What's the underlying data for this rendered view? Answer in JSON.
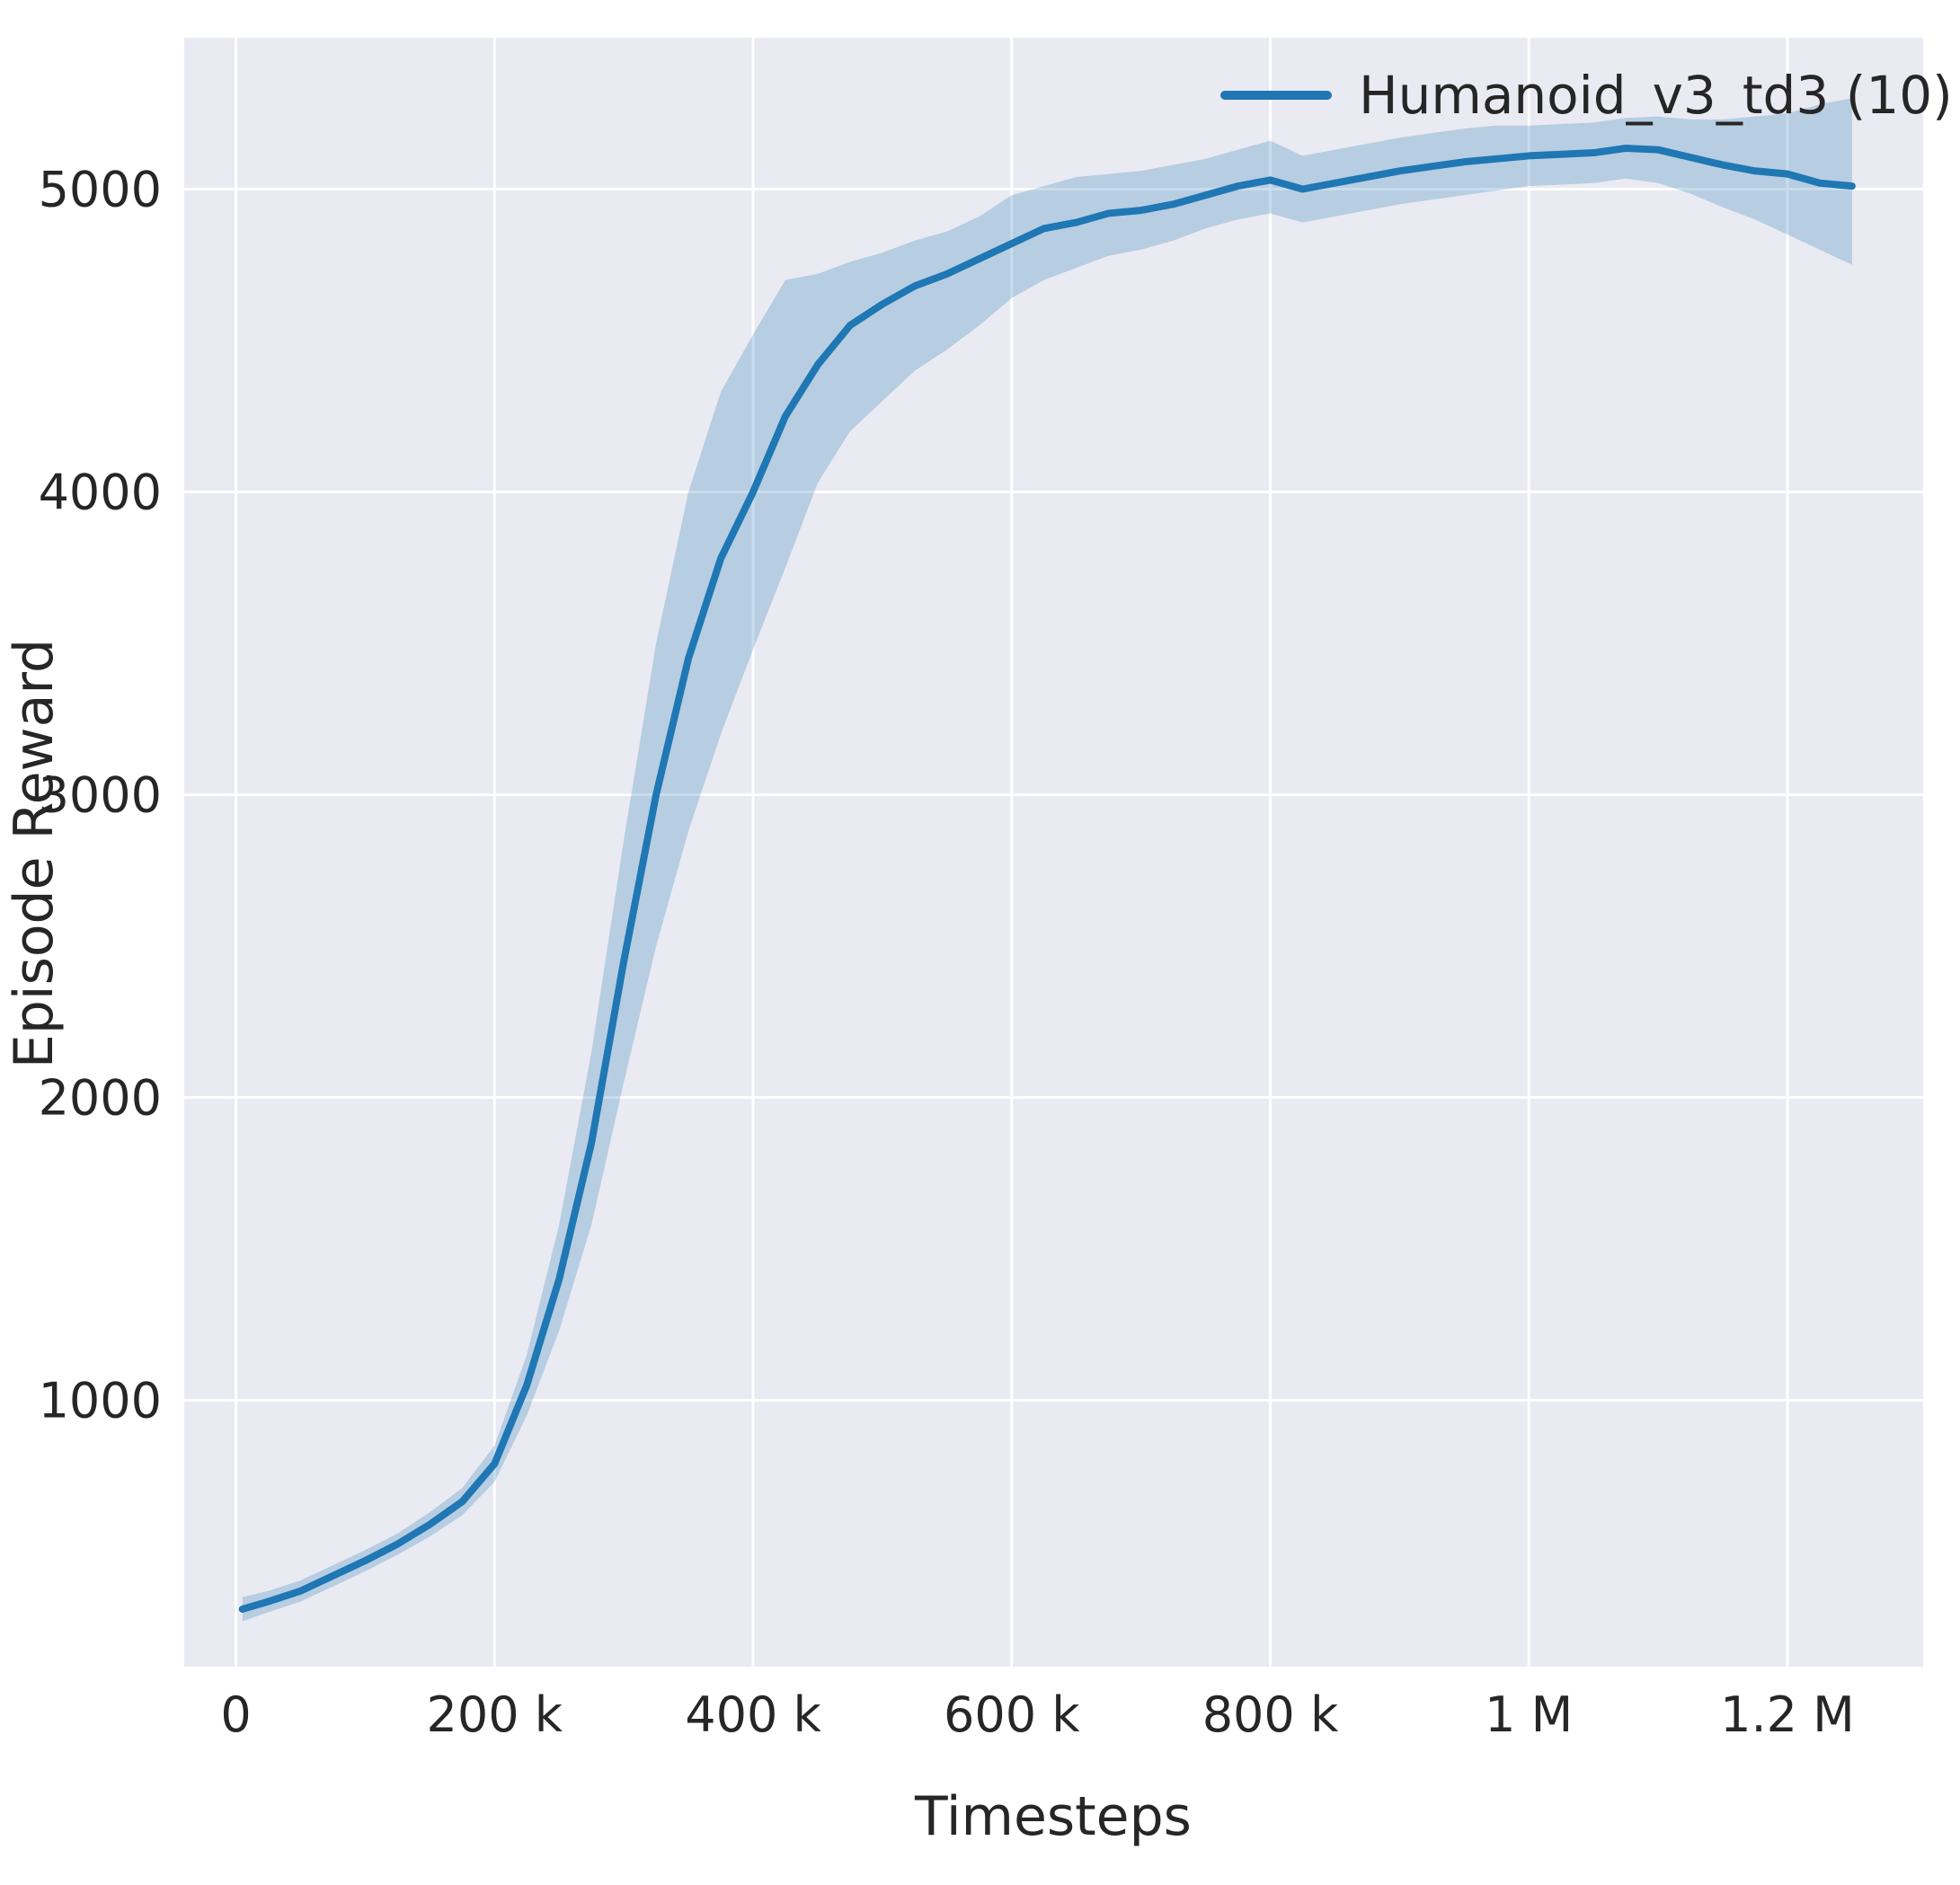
{
  "chart_data": {
    "type": "line",
    "title": "",
    "xlabel": "Timesteps",
    "ylabel": "Episode Reward",
    "xlim": [
      -40000,
      1305000
    ],
    "ylim": [
      120,
      5500
    ],
    "grid": true,
    "legend_position": "upper right",
    "x_ticks": {
      "values": [
        0,
        200000,
        400000,
        600000,
        800000,
        1000000,
        1200000
      ],
      "labels": [
        "0",
        "200 k",
        "400 k",
        "600 k",
        "800 k",
        "1 M",
        "1.2 M"
      ]
    },
    "y_ticks": {
      "values": [
        1000,
        2000,
        3000,
        4000,
        5000
      ],
      "labels": [
        "1000",
        "2000",
        "3000",
        "4000",
        "5000"
      ]
    },
    "series": [
      {
        "name": "Humanoid_v3_td3 (10)",
        "x": [
          5000,
          25000,
          50000,
          75000,
          100000,
          125000,
          150000,
          175000,
          200000,
          225000,
          250000,
          275000,
          300000,
          325000,
          350000,
          375000,
          400000,
          425000,
          450000,
          475000,
          500000,
          525000,
          550000,
          575000,
          600000,
          625000,
          650000,
          675000,
          700000,
          725000,
          750000,
          775000,
          800000,
          825000,
          850000,
          875000,
          900000,
          925000,
          950000,
          975000,
          1000000,
          1025000,
          1050000,
          1075000,
          1100000,
          1125000,
          1150000,
          1175000,
          1200000,
          1225000,
          1250000
        ],
        "mean": [
          310,
          335,
          370,
          420,
          470,
          525,
          590,
          665,
          790,
          1050,
          1400,
          1850,
          2450,
          3000,
          3450,
          3780,
          4000,
          4250,
          4420,
          4550,
          4620,
          4680,
          4720,
          4770,
          4820,
          4870,
          4890,
          4920,
          4930,
          4950,
          4980,
          5010,
          5030,
          5000,
          5020,
          5040,
          5060,
          5075,
          5090,
          5100,
          5110,
          5115,
          5120,
          5135,
          5130,
          5105,
          5080,
          5060,
          5050,
          5020,
          5010
        ],
        "lower": [
          270,
          300,
          335,
          385,
          435,
          490,
          550,
          620,
          730,
          950,
          1230,
          1580,
          2050,
          2500,
          2880,
          3200,
          3480,
          3750,
          4030,
          4200,
          4300,
          4400,
          4470,
          4550,
          4640,
          4700,
          4740,
          4780,
          4800,
          4830,
          4870,
          4900,
          4920,
          4890,
          4910,
          4930,
          4950,
          4965,
          4980,
          4995,
          5010,
          5015,
          5020,
          5035,
          5020,
          4985,
          4940,
          4900,
          4850,
          4800,
          4750
        ],
        "upper": [
          350,
          370,
          405,
          455,
          505,
          560,
          630,
          710,
          850,
          1150,
          1580,
          2150,
          2850,
          3500,
          4000,
          4330,
          4520,
          4700,
          4720,
          4760,
          4790,
          4830,
          4860,
          4910,
          4980,
          5010,
          5040,
          5050,
          5060,
          5080,
          5100,
          5130,
          5160,
          5110,
          5130,
          5150,
          5170,
          5185,
          5200,
          5210,
          5210,
          5215,
          5220,
          5235,
          5240,
          5230,
          5230,
          5240,
          5250,
          5280,
          5300
        ]
      }
    ],
    "colors": {
      "line": "#1f77b4",
      "band": "#1f77b4",
      "band_opacity": 0.25,
      "plot_bg": "#eaeaf2",
      "grid": "#ffffff",
      "text": "#262626"
    }
  }
}
